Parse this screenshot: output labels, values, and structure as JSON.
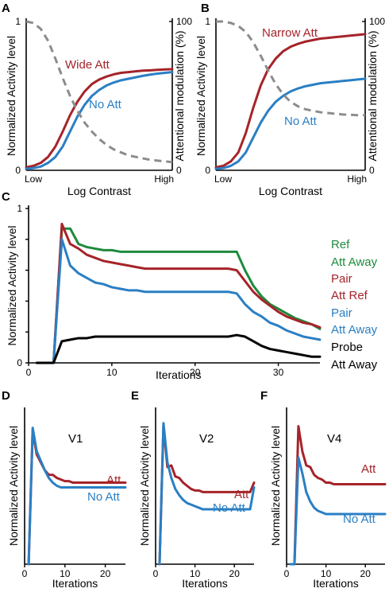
{
  "colors": {
    "red": "#a5242a",
    "blue": "#2a7fc4",
    "green": "#1e8a3c",
    "black": "#000000",
    "gray": "#8c8c8c"
  },
  "chart_data": [
    {
      "panel": "A",
      "type": "line",
      "xlabel": "Log Contrast",
      "ylabel": "Normalized Activity level",
      "y2label": "Attentional modulation (%)",
      "x_tick_low": "Low",
      "x_tick_high": "High",
      "ylim": [
        0,
        1
      ],
      "y_ticks": [
        "0",
        "1"
      ],
      "y2lim": [
        0,
        100
      ],
      "y2_ticks": [
        "0",
        "100"
      ],
      "x": [
        0,
        0.05,
        0.1,
        0.15,
        0.2,
        0.25,
        0.3,
        0.35,
        0.4,
        0.45,
        0.5,
        0.55,
        0.6,
        0.65,
        0.7,
        0.75,
        0.8,
        0.85,
        0.9,
        0.95,
        1
      ],
      "series": [
        {
          "name": "Wide Att",
          "color": "red",
          "style": "solid",
          "axis": "left",
          "values": [
            0.02,
            0.03,
            0.05,
            0.09,
            0.16,
            0.26,
            0.37,
            0.46,
            0.53,
            0.58,
            0.61,
            0.63,
            0.645,
            0.655,
            0.66,
            0.665,
            0.67,
            0.672,
            0.675,
            0.678,
            0.68
          ]
        },
        {
          "name": "No Att",
          "color": "blue",
          "style": "solid",
          "axis": "left",
          "values": [
            0.01,
            0.015,
            0.025,
            0.05,
            0.09,
            0.16,
            0.26,
            0.36,
            0.44,
            0.5,
            0.54,
            0.57,
            0.59,
            0.605,
            0.615,
            0.625,
            0.635,
            0.643,
            0.65,
            0.655,
            0.66
          ]
        },
        {
          "name": "",
          "color": "gray",
          "style": "dashed",
          "axis": "right",
          "values": [
            100,
            99,
            95,
            87,
            75,
            62,
            50,
            40,
            32,
            26,
            21,
            17,
            14,
            12,
            10,
            9,
            8,
            7,
            6.5,
            6,
            5.5
          ]
        }
      ]
    },
    {
      "panel": "B",
      "type": "line",
      "xlabel": "Log Contrast",
      "ylabel": "Normalized Activity level",
      "y2label": "Attentional modulation (%)",
      "x_tick_low": "Low",
      "x_tick_high": "High",
      "ylim": [
        0,
        1
      ],
      "y_ticks": [
        "0",
        "1"
      ],
      "y2lim": [
        0,
        100
      ],
      "y2_ticks": [
        "0",
        "100"
      ],
      "x": [
        0,
        0.05,
        0.1,
        0.15,
        0.2,
        0.25,
        0.3,
        0.35,
        0.4,
        0.45,
        0.5,
        0.55,
        0.6,
        0.65,
        0.7,
        0.75,
        0.8,
        0.85,
        0.9,
        0.95,
        1
      ],
      "series": [
        {
          "name": "Narrow Att",
          "color": "red",
          "style": "solid",
          "axis": "left",
          "values": [
            0.02,
            0.03,
            0.06,
            0.12,
            0.25,
            0.42,
            0.57,
            0.68,
            0.75,
            0.8,
            0.83,
            0.85,
            0.865,
            0.875,
            0.885,
            0.89,
            0.895,
            0.9,
            0.905,
            0.91,
            0.915
          ]
        },
        {
          "name": "No Att",
          "color": "blue",
          "style": "solid",
          "axis": "left",
          "values": [
            0.01,
            0.015,
            0.03,
            0.06,
            0.12,
            0.22,
            0.32,
            0.4,
            0.46,
            0.5,
            0.53,
            0.55,
            0.565,
            0.575,
            0.585,
            0.59,
            0.595,
            0.6,
            0.605,
            0.61,
            0.615
          ]
        },
        {
          "name": "",
          "color": "gray",
          "style": "dashed",
          "axis": "right",
          "values": [
            100,
            100,
            99,
            97,
            93,
            86,
            77,
            67,
            58,
            51,
            46,
            43,
            41,
            40,
            39,
            38.5,
            38,
            37.5,
            37.3,
            37,
            37
          ]
        }
      ]
    },
    {
      "panel": "C",
      "type": "line",
      "xlabel": "Iterations",
      "ylabel": "Normalized Activity level",
      "xlim": [
        0,
        35
      ],
      "ylim": [
        0,
        1
      ],
      "x_ticks": [
        0,
        10,
        20,
        30
      ],
      "y_ticks": [
        0,
        1
      ],
      "x": [
        0,
        1,
        2,
        3,
        4,
        5,
        6,
        7,
        8,
        9,
        10,
        11,
        12,
        13,
        14,
        15,
        16,
        17,
        18,
        19,
        20,
        21,
        22,
        23,
        24,
        25,
        26,
        27,
        28,
        29,
        30,
        31,
        32,
        33,
        34,
        35
      ],
      "series": [
        {
          "name": "Ref Att Away",
          "legend_line1": "Ref",
          "legend_line2": "Att Away",
          "color": "green",
          "values": [
            null,
            0,
            0,
            0,
            0.87,
            0.87,
            0.77,
            0.75,
            0.74,
            0.73,
            0.73,
            0.72,
            0.72,
            0.72,
            0.72,
            0.72,
            0.72,
            0.72,
            0.72,
            0.72,
            0.72,
            0.72,
            0.72,
            0.72,
            0.72,
            0.72,
            0.6,
            0.5,
            0.43,
            0.38,
            0.35,
            0.32,
            0.29,
            0.27,
            0.25,
            0.22
          ]
        },
        {
          "name": "Pair Att Ref",
          "legend_line1": "Pair",
          "legend_line2": "Att Ref",
          "color": "red",
          "values": [
            null,
            0,
            0,
            0,
            0.9,
            0.77,
            0.74,
            0.7,
            0.68,
            0.66,
            0.65,
            0.64,
            0.63,
            0.62,
            0.61,
            0.61,
            0.61,
            0.61,
            0.61,
            0.61,
            0.61,
            0.61,
            0.61,
            0.61,
            0.61,
            0.6,
            0.53,
            0.46,
            0.41,
            0.37,
            0.33,
            0.3,
            0.28,
            0.26,
            0.25,
            0.23
          ]
        },
        {
          "name": "Pair Att Away",
          "legend_line1": "Pair",
          "legend_line2": "Att Away",
          "color": "blue",
          "values": [
            null,
            0,
            0,
            0,
            0.8,
            0.63,
            0.58,
            0.55,
            0.52,
            0.51,
            0.49,
            0.48,
            0.47,
            0.47,
            0.46,
            0.46,
            0.46,
            0.46,
            0.46,
            0.46,
            0.46,
            0.46,
            0.46,
            0.46,
            0.46,
            0.45,
            0.38,
            0.33,
            0.3,
            0.26,
            0.24,
            0.21,
            0.19,
            0.17,
            0.16,
            0.15
          ]
        },
        {
          "name": "Probe Att Away",
          "legend_line1": "Probe",
          "legend_line2": "Att Away",
          "color": "black",
          "values": [
            null,
            0,
            0,
            0,
            0.14,
            0.15,
            0.16,
            0.16,
            0.17,
            0.17,
            0.17,
            0.17,
            0.17,
            0.17,
            0.17,
            0.17,
            0.17,
            0.17,
            0.17,
            0.17,
            0.17,
            0.17,
            0.17,
            0.17,
            0.17,
            0.18,
            0.17,
            0.14,
            0.11,
            0.09,
            0.08,
            0.07,
            0.06,
            0.05,
            0.04,
            0.04
          ]
        }
      ]
    },
    {
      "panel": "D",
      "type": "line",
      "title": "V1",
      "xlabel": "Iterations",
      "ylabel": "Normalized Activity level",
      "xlim": [
        0,
        25
      ],
      "ylim": [
        0,
        1
      ],
      "x_ticks": [
        0,
        10,
        20
      ],
      "x": [
        0,
        1,
        2,
        3,
        4,
        5,
        6,
        7,
        8,
        9,
        10,
        11,
        12,
        13,
        14,
        15,
        16,
        17,
        18,
        19,
        20,
        21,
        22,
        23,
        24,
        25
      ],
      "series": [
        {
          "name": "Att",
          "color": "red",
          "values": [
            null,
            0,
            0.85,
            0.7,
            0.65,
            0.6,
            0.57,
            0.57,
            0.55,
            0.54,
            0.53,
            0.53,
            0.52,
            0.52,
            0.52,
            0.52,
            0.52,
            0.52,
            0.52,
            0.52,
            0.52,
            0.52,
            0.52,
            0.52,
            0.52,
            0.52
          ]
        },
        {
          "name": "No Att",
          "color": "blue",
          "values": [
            null,
            0,
            0.87,
            0.72,
            0.66,
            0.6,
            0.55,
            0.52,
            0.5,
            0.49,
            0.49,
            0.49,
            0.49,
            0.49,
            0.49,
            0.49,
            0.49,
            0.49,
            0.49,
            0.49,
            0.49,
            0.49,
            0.49,
            0.49,
            0.49,
            0.49
          ]
        }
      ]
    },
    {
      "panel": "E",
      "type": "line",
      "title": "V2",
      "xlabel": "Iterations",
      "ylabel": "Normalized Activity level",
      "xlim": [
        0,
        25
      ],
      "ylim": [
        0,
        1
      ],
      "x_ticks": [
        0,
        10,
        20
      ],
      "x": [
        0,
        1,
        2,
        3,
        4,
        5,
        6,
        7,
        8,
        9,
        10,
        11,
        12,
        13,
        14,
        15,
        16,
        17,
        18,
        19,
        20,
        21,
        22,
        23,
        24,
        25
      ],
      "series": [
        {
          "name": "Att",
          "color": "red",
          "values": [
            null,
            0,
            0.88,
            0.62,
            0.63,
            0.56,
            0.55,
            0.52,
            0.5,
            0.48,
            0.47,
            0.47,
            0.46,
            0.46,
            0.46,
            0.46,
            0.46,
            0.46,
            0.46,
            0.46,
            0.46,
            0.46,
            0.46,
            0.46,
            0.46,
            0.52
          ]
        },
        {
          "name": "No Att",
          "color": "blue",
          "values": [
            null,
            0,
            0.9,
            0.65,
            0.55,
            0.48,
            0.44,
            0.41,
            0.39,
            0.38,
            0.37,
            0.36,
            0.35,
            0.35,
            0.35,
            0.35,
            0.35,
            0.35,
            0.35,
            0.35,
            0.35,
            0.35,
            0.35,
            0.35,
            0.35,
            0.49
          ]
        }
      ]
    },
    {
      "panel": "F",
      "type": "line",
      "title": "V4",
      "xlabel": "Iterations",
      "ylabel": "Normalized Activity level",
      "xlim": [
        0,
        25
      ],
      "ylim": [
        0,
        1
      ],
      "x_ticks": [
        0,
        10,
        20
      ],
      "x": [
        0,
        1,
        2,
        3,
        4,
        5,
        6,
        7,
        8,
        9,
        10,
        11,
        12,
        13,
        14,
        15,
        16,
        17,
        18,
        19,
        20,
        21,
        22,
        23,
        24,
        25
      ],
      "series": [
        {
          "name": "Att",
          "color": "red",
          "values": [
            null,
            0,
            0,
            0.88,
            0.72,
            0.63,
            0.62,
            0.57,
            0.55,
            0.54,
            0.52,
            0.52,
            0.51,
            0.51,
            0.51,
            0.51,
            0.51,
            0.51,
            0.51,
            0.51,
            0.51,
            0.51,
            0.51,
            0.51,
            0.51,
            0.51
          ]
        },
        {
          "name": "No Att",
          "color": "blue",
          "values": [
            null,
            0,
            0,
            0.68,
            0.58,
            0.46,
            0.4,
            0.36,
            0.34,
            0.33,
            0.32,
            0.32,
            0.32,
            0.32,
            0.32,
            0.32,
            0.32,
            0.32,
            0.32,
            0.32,
            0.32,
            0.32,
            0.32,
            0.32,
            0.32,
            0.32
          ]
        }
      ]
    }
  ]
}
